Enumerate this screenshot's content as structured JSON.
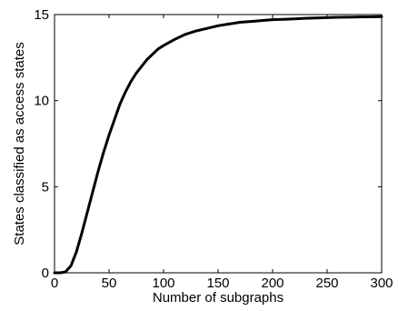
{
  "chart_data": {
    "type": "line",
    "title": "",
    "xlabel": "Number of subgraphs",
    "ylabel": "States classified as access states",
    "xlim": [
      0,
      300
    ],
    "ylim": [
      0,
      15
    ],
    "x_ticks": [
      0,
      50,
      100,
      150,
      200,
      250,
      300
    ],
    "y_ticks": [
      0,
      5,
      10,
      15
    ],
    "x_tick_labels": [
      "0",
      "50",
      "100",
      "150",
      "200",
      "250",
      "300"
    ],
    "y_tick_labels": [
      "0",
      "5",
      "10",
      "15"
    ],
    "grid": false,
    "legend": "none",
    "series": [
      {
        "color": "#000000",
        "x": [
          0,
          5,
          10,
          15,
          20,
          25,
          30,
          35,
          40,
          45,
          50,
          55,
          60,
          65,
          70,
          75,
          80,
          85,
          90,
          95,
          100,
          110,
          120,
          130,
          140,
          150,
          160,
          170,
          180,
          190,
          200,
          210,
          220,
          230,
          240,
          250,
          260,
          270,
          280,
          290,
          300
        ],
        "y": [
          0,
          0,
          0.05,
          0.4,
          1.2,
          2.3,
          3.5,
          4.7,
          5.9,
          7.0,
          8.0,
          8.9,
          9.8,
          10.5,
          11.1,
          11.6,
          12.0,
          12.4,
          12.7,
          13.0,
          13.2,
          13.55,
          13.85,
          14.05,
          14.2,
          14.35,
          14.45,
          14.55,
          14.6,
          14.65,
          14.7,
          14.72,
          14.75,
          14.78,
          14.8,
          14.82,
          14.84,
          14.85,
          14.86,
          14.87,
          14.88
        ]
      }
    ]
  }
}
